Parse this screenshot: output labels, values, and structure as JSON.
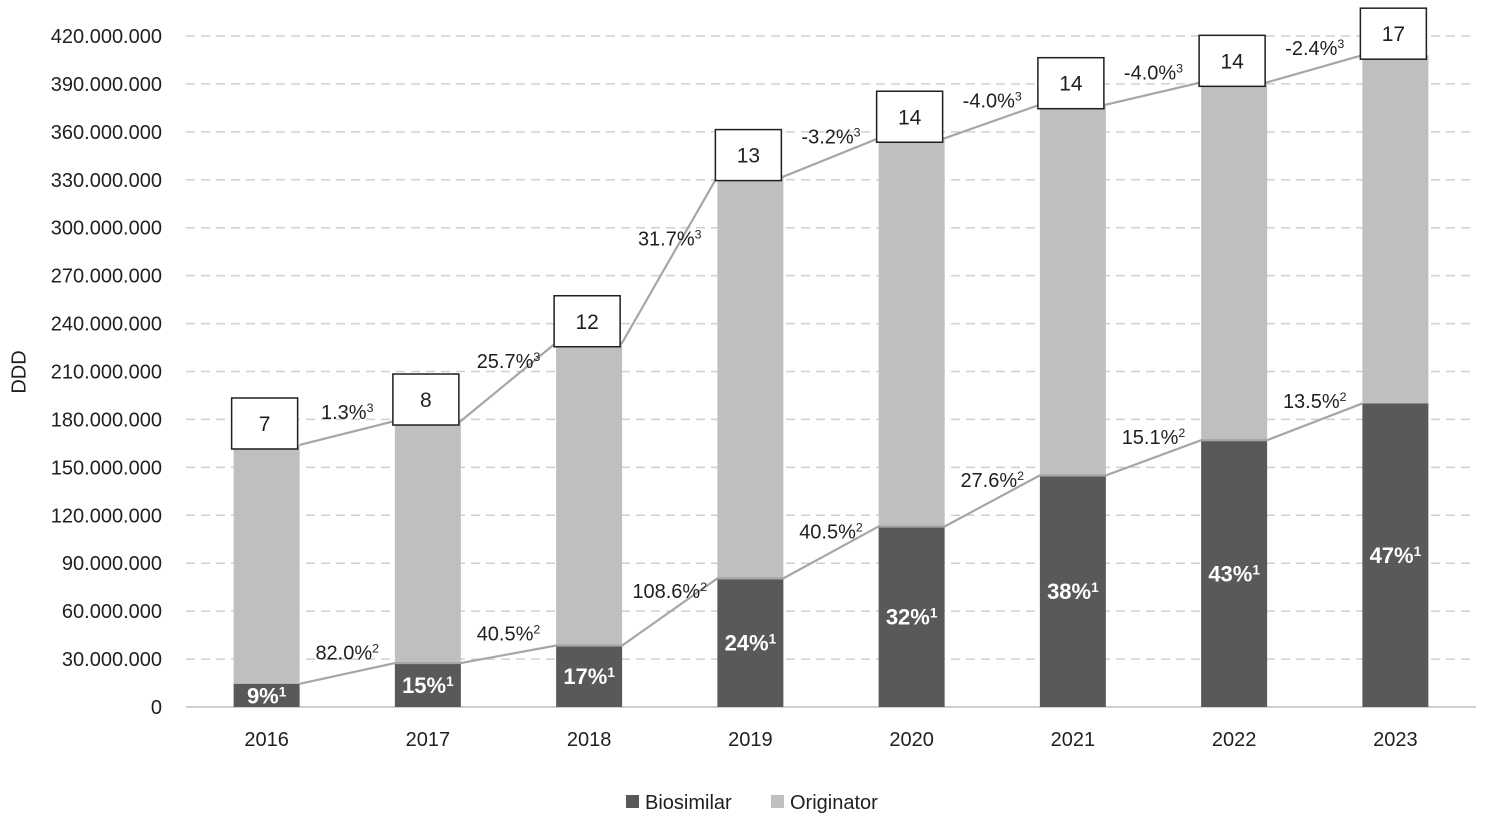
{
  "colors": {
    "biosimilar": "#595959",
    "originator": "#bfbfbf",
    "gridline": "#d0d0d0",
    "connector": "#a6a6a6",
    "text": "#1f1f1f"
  },
  "chart_data": {
    "type": "bar",
    "stacked": true,
    "title": "",
    "xlabel": "",
    "ylabel": "DDD",
    "ylim": [
      0,
      420000000
    ],
    "yticks": [
      0,
      30000000,
      60000000,
      90000000,
      120000000,
      150000000,
      180000000,
      210000000,
      240000000,
      270000000,
      300000000,
      330000000,
      360000000,
      390000000,
      420000000
    ],
    "ytick_labels": [
      "0",
      "30.000.000",
      "60.000.000",
      "90.000.000",
      "120.000.000",
      "150.000.000",
      "180.000.000",
      "210.000.000",
      "240.000.000",
      "270.000.000",
      "300.000.000",
      "330.000.000",
      "360.000.000",
      "390.000.000",
      "420.000.000"
    ],
    "grid": "horizontal dashed",
    "legend_position": "bottom",
    "categories": [
      "2016",
      "2017",
      "2018",
      "2019",
      "2020",
      "2021",
      "2022",
      "2023"
    ],
    "series": [
      {
        "name": "Biosimilar",
        "values": [
          14500000,
          27500000,
          38500000,
          80500000,
          113000000,
          145000000,
          167000000,
          190000000
        ]
      },
      {
        "name": "Originator",
        "values": [
          149500000,
          151500000,
          189500000,
          251500000,
          243000000,
          232000000,
          224000000,
          218000000
        ]
      }
    ],
    "biosimilar_share_labels": [
      "9%",
      "15%",
      "17%",
      "24%",
      "32%",
      "38%",
      "43%",
      "47%"
    ],
    "biosimilar_share_sup": "1",
    "biosimilar_growth_labels": [
      "82.0%",
      "40.5%",
      "108.6%",
      "40.5%",
      "27.6%",
      "15.1%",
      "13.5%"
    ],
    "biosimilar_growth_sup": "2",
    "total_growth_labels": [
      "1.3%",
      "25.7%",
      "31.7%",
      "-3.2%",
      "-4.0%",
      "-4.0%",
      "-2.4%"
    ],
    "total_growth_sup": "3",
    "box_counts": [
      "7",
      "8",
      "12",
      "13",
      "14",
      "14",
      "14",
      "17"
    ]
  }
}
